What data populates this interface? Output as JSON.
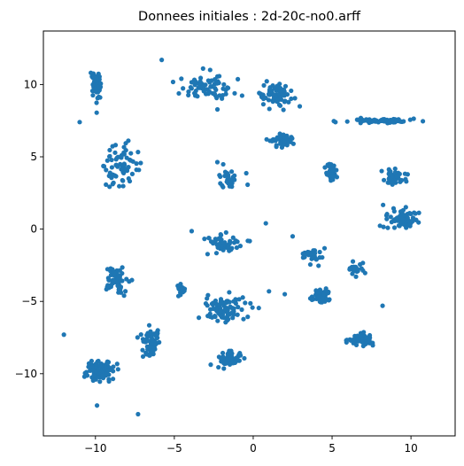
{
  "chart_data": {
    "type": "scatter",
    "title": "Donnees initiales : 2d-20c-no0.arff",
    "xlabel": "",
    "ylabel": "",
    "xlim": [
      -13.3,
      12.8
    ],
    "ylim": [
      -14.3,
      13.7
    ],
    "xticks": [
      -10,
      -5,
      0,
      5,
      10
    ],
    "yticks": [
      -10,
      -5,
      0,
      5,
      10
    ],
    "grid": false,
    "legend": "none",
    "marker_color": "#1f77b4",
    "clusters": [
      {
        "center": [
          -10.0,
          9.8
        ],
        "spread": [
          0.25,
          1.0
        ],
        "n": 50
      },
      {
        "center": [
          -3.0,
          9.8
        ],
        "spread": [
          1.3,
          0.7
        ],
        "n": 70
      },
      {
        "center": [
          1.5,
          9.3
        ],
        "spread": [
          1.0,
          0.6
        ],
        "n": 70
      },
      {
        "center": [
          8.2,
          7.5
        ],
        "spread": [
          1.7,
          0.12
        ],
        "n": 80
      },
      {
        "center": [
          1.8,
          6.1
        ],
        "spread": [
          0.6,
          0.3
        ],
        "n": 50
      },
      {
        "center": [
          -8.3,
          4.3
        ],
        "spread": [
          0.9,
          1.2
        ],
        "n": 70
      },
      {
        "center": [
          -1.6,
          3.3
        ],
        "spread": [
          0.7,
          0.7
        ],
        "n": 30
      },
      {
        "center": [
          5.0,
          3.9
        ],
        "spread": [
          0.25,
          0.5
        ],
        "n": 40
      },
      {
        "center": [
          8.9,
          3.6
        ],
        "spread": [
          0.6,
          0.4
        ],
        "n": 50
      },
      {
        "center": [
          9.5,
          0.7
        ],
        "spread": [
          0.9,
          0.5
        ],
        "n": 80
      },
      {
        "center": [
          -2.0,
          -0.9
        ],
        "spread": [
          1.2,
          0.6
        ],
        "n": 50
      },
      {
        "center": [
          3.9,
          -1.8
        ],
        "spread": [
          0.7,
          0.6
        ],
        "n": 30
      },
      {
        "center": [
          6.6,
          -2.8
        ],
        "spread": [
          0.5,
          0.4
        ],
        "n": 20
      },
      {
        "center": [
          -8.6,
          -3.4
        ],
        "spread": [
          0.6,
          0.8
        ],
        "n": 70
      },
      {
        "center": [
          -4.6,
          -4.1
        ],
        "spread": [
          0.2,
          0.4
        ],
        "n": 20
      },
      {
        "center": [
          -1.8,
          -5.6
        ],
        "spread": [
          1.2,
          0.8
        ],
        "n": 90
      },
      {
        "center": [
          4.3,
          -4.6
        ],
        "spread": [
          0.5,
          0.4
        ],
        "n": 50
      },
      {
        "center": [
          -6.5,
          -7.9
        ],
        "spread": [
          0.4,
          0.8
        ],
        "n": 70
      },
      {
        "center": [
          -1.5,
          -9.0
        ],
        "spread": [
          0.6,
          0.4
        ],
        "n": 60
      },
      {
        "center": [
          6.9,
          -7.6
        ],
        "spread": [
          0.6,
          0.3
        ],
        "n": 60
      },
      {
        "center": [
          -9.7,
          -9.8
        ],
        "spread": [
          0.7,
          0.6
        ],
        "n": 100
      }
    ],
    "outliers": [
      [
        -12.0,
        -7.3
      ],
      [
        -9.9,
        -12.2
      ],
      [
        -7.3,
        -12.8
      ],
      [
        -11.0,
        7.4
      ],
      [
        -5.8,
        11.7
      ],
      [
        8.2,
        -5.3
      ],
      [
        2.0,
        -4.5
      ],
      [
        1.0,
        -4.3
      ],
      [
        0.8,
        0.4
      ],
      [
        2.5,
        -0.5
      ]
    ]
  }
}
